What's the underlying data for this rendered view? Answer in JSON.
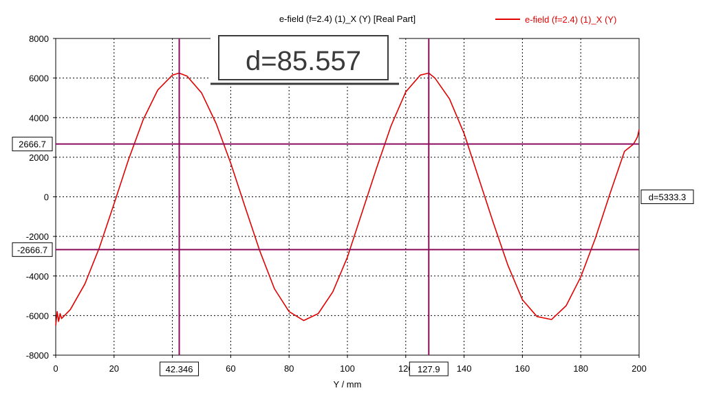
{
  "chart_data": {
    "type": "line",
    "title": "e-field (f=2.4) (1)_X (Y) [Real Part]",
    "xlabel": "Y / mm",
    "ylabel": "",
    "xlim": [
      0,
      200
    ],
    "ylim": [
      -8000,
      8000
    ],
    "xticks": [
      "0",
      "20",
      "40",
      "60",
      "80",
      "100",
      "120",
      "140",
      "160",
      "180",
      "200"
    ],
    "yticks": [
      "8000",
      "6000",
      "4000",
      "2000",
      "0",
      "-2000",
      "-4000",
      "-6000",
      "-8000"
    ],
    "grid": true,
    "legend": "top-right",
    "series": [
      {
        "name": "e-field (f=2.4) (1)_X (Y)",
        "color": "#e00000",
        "x": [
          0,
          0.5,
          1,
          1.5,
          2,
          5,
          10,
          15,
          20,
          25,
          30,
          35,
          40,
          42.3,
          45,
          50,
          55,
          60,
          65,
          70,
          75,
          80,
          85,
          90,
          95,
          100,
          105,
          110,
          115,
          120,
          125,
          127.9,
          130,
          135,
          140,
          145,
          150,
          155,
          160,
          165,
          170,
          175,
          180,
          185,
          190,
          195,
          198,
          199,
          199.5,
          200
        ],
        "y": [
          -6500,
          -5800,
          -6300,
          -5900,
          -6150,
          -5700,
          -4400,
          -2550,
          -350,
          1900,
          3900,
          5400,
          6150,
          6250,
          6100,
          5250,
          3700,
          1700,
          -550,
          -2750,
          -4650,
          -5800,
          -6250,
          -5900,
          -4800,
          -3050,
          -800,
          1450,
          3600,
          5300,
          6150,
          6250,
          6000,
          4950,
          3200,
          950,
          -1300,
          -3450,
          -5200,
          -6050,
          -6200,
          -5500,
          -4050,
          -2100,
          150,
          2300,
          2650,
          2900,
          3050,
          3400
        ]
      }
    ],
    "markers": {
      "horizontal": [
        {
          "value": 2666.7,
          "label": "2666.7"
        },
        {
          "value": -2666.7,
          "label": "-2666.7"
        }
      ],
      "horizontal_delta_label": "d=5333.3",
      "vertical": [
        {
          "value": 42.346,
          "label": "42.346"
        },
        {
          "value": 127.9,
          "label": "127.9"
        }
      ],
      "vertical_delta_label": "d=85.557",
      "marker_color": "#8b0a5c"
    }
  }
}
